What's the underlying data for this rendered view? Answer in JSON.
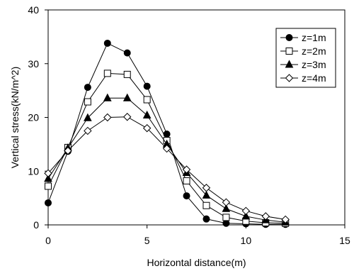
{
  "chart_data": {
    "type": "line",
    "xlabel": "Horizontal distance(m)",
    "ylabel": "Vertical stress(kN/m^2)",
    "xlim": [
      0,
      15
    ],
    "ylim": [
      0,
      40
    ],
    "xticks": [
      0,
      5,
      10,
      15
    ],
    "yticks": [
      0,
      10,
      20,
      30,
      40
    ],
    "grid": false,
    "legend_position": "top-right",
    "x": [
      0,
      1,
      2,
      3,
      4,
      5,
      6,
      7,
      8,
      9,
      10,
      11,
      12
    ],
    "series": [
      {
        "name": "z=1m",
        "marker": "filled-circle",
        "values": [
          4.1,
          13.7,
          25.6,
          33.8,
          32.0,
          25.8,
          16.9,
          5.4,
          1.1,
          0.3,
          0.2,
          0.1,
          0.1
        ]
      },
      {
        "name": "z=2m",
        "marker": "open-square",
        "values": [
          7.2,
          14.4,
          22.9,
          28.2,
          28.0,
          23.3,
          15.7,
          8.2,
          3.6,
          1.4,
          0.7,
          0.4,
          0.3
        ]
      },
      {
        "name": "z=3m",
        "marker": "filled-triangle",
        "values": [
          8.6,
          14.3,
          19.9,
          23.6,
          23.6,
          20.4,
          15.0,
          9.7,
          5.5,
          3.0,
          1.6,
          0.9,
          0.5
        ]
      },
      {
        "name": "z=4m",
        "marker": "open-diamond",
        "values": [
          9.6,
          13.8,
          17.5,
          20.0,
          20.1,
          18.0,
          14.2,
          10.3,
          6.9,
          4.2,
          2.6,
          1.6,
          1.0
        ]
      }
    ]
  }
}
